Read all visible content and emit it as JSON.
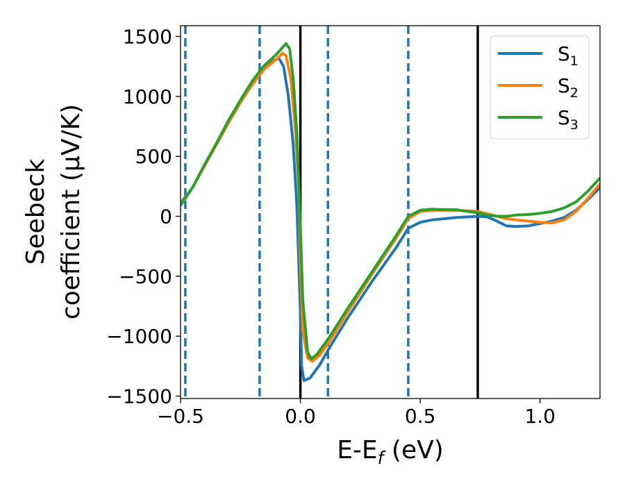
{
  "chart_data": {
    "type": "line",
    "xlabel": {
      "main": "E-E",
      "sub": "f",
      "rest": " (eV)"
    },
    "ylabel": {
      "line1": "Seebeck",
      "line2": "coefficient  (μV/K)"
    },
    "xlim": [
      -0.5,
      1.25
    ],
    "ylim": [
      -1520,
      1590
    ],
    "xticks": [
      -0.5,
      0.0,
      0.5,
      1.0
    ],
    "xtick_labels": [
      "−0.5",
      "0.0",
      "0.5",
      "1.0"
    ],
    "yticks": [
      -1500,
      -1000,
      -500,
      0,
      500,
      1000,
      1500
    ],
    "ytick_labels": [
      "−1500",
      "−1000",
      "−500",
      "0",
      "500",
      "1000",
      "1500"
    ],
    "grid": false,
    "legend_placement": "top-right",
    "vlines_dashed": [
      -0.48,
      -0.17,
      0.115,
      0.45
    ],
    "vlines_solid": [
      0.0,
      0.74
    ],
    "series": [
      {
        "name": "S1",
        "label_main": "S",
        "label_sub": "1",
        "color": "#1f77b4",
        "points": [
          [
            -0.5,
            110
          ],
          [
            -0.45,
            240
          ],
          [
            -0.4,
            420
          ],
          [
            -0.35,
            600
          ],
          [
            -0.3,
            780
          ],
          [
            -0.25,
            950
          ],
          [
            -0.2,
            1110
          ],
          [
            -0.15,
            1230
          ],
          [
            -0.12,
            1290
          ],
          [
            -0.09,
            1320
          ],
          [
            -0.07,
            1250
          ],
          [
            -0.05,
            1000
          ],
          [
            -0.03,
            600
          ],
          [
            -0.015,
            100
          ],
          [
            0.0,
            -800
          ],
          [
            0.005,
            -1250
          ],
          [
            0.015,
            -1370
          ],
          [
            0.04,
            -1350
          ],
          [
            0.08,
            -1240
          ],
          [
            0.12,
            -1100
          ],
          [
            0.2,
            -840
          ],
          [
            0.3,
            -540
          ],
          [
            0.4,
            -260
          ],
          [
            0.45,
            -100
          ],
          [
            0.5,
            -50
          ],
          [
            0.55,
            -30
          ],
          [
            0.6,
            -20
          ],
          [
            0.65,
            -10
          ],
          [
            0.7,
            -5
          ],
          [
            0.74,
            0
          ],
          [
            0.78,
            -5
          ],
          [
            0.82,
            -40
          ],
          [
            0.86,
            -80
          ],
          [
            0.9,
            -85
          ],
          [
            0.95,
            -80
          ],
          [
            1.0,
            -60
          ],
          [
            1.05,
            -40
          ],
          [
            1.1,
            -10
          ],
          [
            1.15,
            50
          ],
          [
            1.2,
            140
          ],
          [
            1.25,
            240
          ]
        ]
      },
      {
        "name": "S2",
        "label_main": "S",
        "label_sub": "2",
        "color": "#ff7f0e",
        "points": [
          [
            -0.5,
            100
          ],
          [
            -0.45,
            240
          ],
          [
            -0.4,
            420
          ],
          [
            -0.35,
            600
          ],
          [
            -0.3,
            780
          ],
          [
            -0.25,
            950
          ],
          [
            -0.2,
            1100
          ],
          [
            -0.15,
            1230
          ],
          [
            -0.1,
            1310
          ],
          [
            -0.075,
            1360
          ],
          [
            -0.06,
            1340
          ],
          [
            -0.04,
            1150
          ],
          [
            -0.02,
            700
          ],
          [
            -0.005,
            200
          ],
          [
            0.0,
            -400
          ],
          [
            0.01,
            -950
          ],
          [
            0.03,
            -1180
          ],
          [
            0.05,
            -1210
          ],
          [
            0.08,
            -1160
          ],
          [
            0.12,
            -1050
          ],
          [
            0.2,
            -790
          ],
          [
            0.3,
            -480
          ],
          [
            0.4,
            -180
          ],
          [
            0.45,
            -20
          ],
          [
            0.5,
            40
          ],
          [
            0.55,
            50
          ],
          [
            0.6,
            50
          ],
          [
            0.65,
            50
          ],
          [
            0.7,
            45
          ],
          [
            0.74,
            40
          ],
          [
            0.78,
            20
          ],
          [
            0.82,
            0
          ],
          [
            0.86,
            -20
          ],
          [
            0.9,
            -30
          ],
          [
            0.95,
            -40
          ],
          [
            1.0,
            -50
          ],
          [
            1.05,
            -55
          ],
          [
            1.1,
            -30
          ],
          [
            1.15,
            40
          ],
          [
            1.2,
            150
          ],
          [
            1.25,
            270
          ]
        ]
      },
      {
        "name": "S3",
        "label_main": "S",
        "label_sub": "3",
        "color": "#2ca02c",
        "points": [
          [
            -0.5,
            90
          ],
          [
            -0.45,
            240
          ],
          [
            -0.4,
            430
          ],
          [
            -0.35,
            610
          ],
          [
            -0.3,
            800
          ],
          [
            -0.25,
            970
          ],
          [
            -0.2,
            1130
          ],
          [
            -0.15,
            1260
          ],
          [
            -0.1,
            1350
          ],
          [
            -0.07,
            1420
          ],
          [
            -0.06,
            1440
          ],
          [
            -0.045,
            1400
          ],
          [
            -0.03,
            1150
          ],
          [
            -0.015,
            700
          ],
          [
            0.0,
            -100
          ],
          [
            0.01,
            -700
          ],
          [
            0.03,
            -1130
          ],
          [
            0.045,
            -1190
          ],
          [
            0.07,
            -1150
          ],
          [
            0.12,
            -1010
          ],
          [
            0.2,
            -760
          ],
          [
            0.3,
            -460
          ],
          [
            0.4,
            -160
          ],
          [
            0.45,
            0
          ],
          [
            0.5,
            50
          ],
          [
            0.55,
            60
          ],
          [
            0.6,
            55
          ],
          [
            0.65,
            55
          ],
          [
            0.7,
            40
          ],
          [
            0.74,
            30
          ],
          [
            0.78,
            10
          ],
          [
            0.82,
            0
          ],
          [
            0.86,
            0
          ],
          [
            0.9,
            10
          ],
          [
            0.95,
            15
          ],
          [
            1.0,
            25
          ],
          [
            1.05,
            40
          ],
          [
            1.1,
            70
          ],
          [
            1.15,
            120
          ],
          [
            1.2,
            210
          ],
          [
            1.25,
            320
          ]
        ]
      }
    ]
  }
}
